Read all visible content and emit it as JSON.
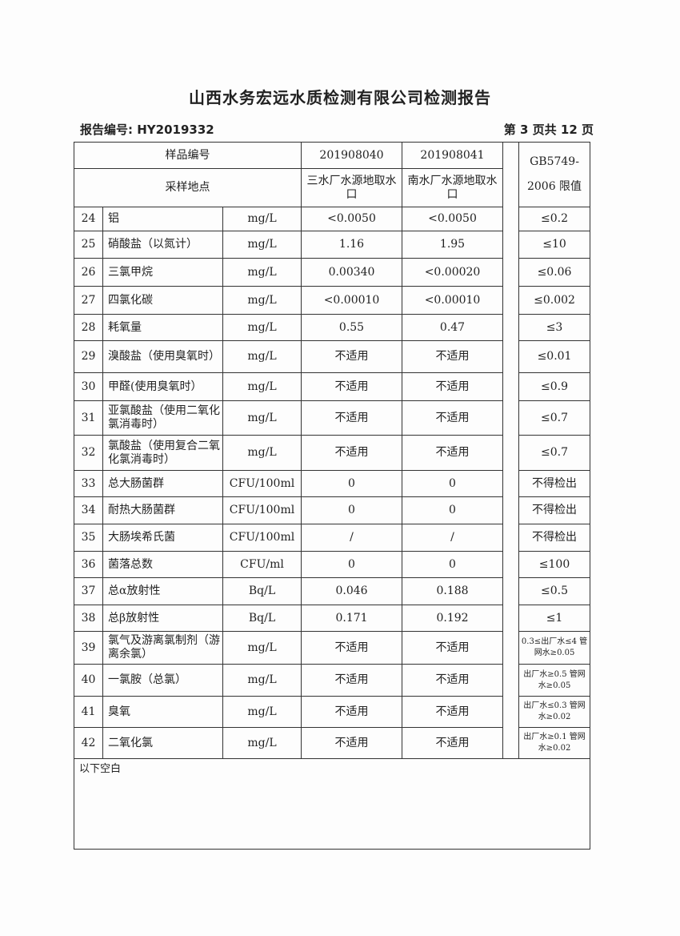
{
  "title": "山西水务宏远水质检测有限公司检测报告",
  "report_no": "报告编号: HY2019332",
  "page_info": "第 3 页共 12 页",
  "header": {
    "sample_no_label": "样品编号",
    "sample1": "201908040",
    "sample2": "201908041",
    "location_label": "采样地点",
    "loc1": "三水厂水源地取水口",
    "loc2": "南水厂水源地取水口",
    "limit_label1": "GB5749-",
    "limit_label2": "2006 限值"
  },
  "rows": [
    {
      "no": "24",
      "name": "铝",
      "unit": "mg/L",
      "v1": "<0.0050",
      "v2": "<0.0050",
      "limit": "≤0.2"
    },
    {
      "no": "25",
      "name": "硝酸盐（以氮计）",
      "unit": "mg/L",
      "v1": "1.16",
      "v2": "1.95",
      "limit": "≤10"
    },
    {
      "no": "26",
      "name": "三氯甲烷",
      "unit": "mg/L",
      "v1": "0.00340",
      "v2": "<0.00020",
      "limit": "≤0.06"
    },
    {
      "no": "27",
      "name": "四氯化碳",
      "unit": "mg/L",
      "v1": "<0.00010",
      "v2": "<0.00010",
      "limit": "≤0.002"
    },
    {
      "no": "28",
      "name": "耗氧量",
      "unit": "mg/L",
      "v1": "0.55",
      "v2": "0.47",
      "limit": "≤3"
    },
    {
      "no": "29",
      "name": "溴酸盐（使用臭氧时）",
      "unit": "mg/L",
      "v1": "不适用",
      "v2": "不适用",
      "limit": "≤0.01"
    },
    {
      "no": "30",
      "name": "甲醛(使用臭氧时）",
      "unit": "mg/L",
      "v1": "不适用",
      "v2": "不适用",
      "limit": "≤0.9"
    },
    {
      "no": "31",
      "name": "亚氯酸盐（使用二氧化氯消毒时）",
      "unit": "mg/L",
      "v1": "不适用",
      "v2": "不适用",
      "limit": "≤0.7"
    },
    {
      "no": "32",
      "name": "氯酸盐（使用复合二氧化氯消毒时）",
      "unit": "mg/L",
      "v1": "不适用",
      "v2": "不适用",
      "limit": "≤0.7"
    },
    {
      "no": "33",
      "name": "总大肠菌群",
      "unit": "CFU/100ml",
      "v1": "0",
      "v2": "0",
      "limit": "不得检出"
    },
    {
      "no": "34",
      "name": "耐热大肠菌群",
      "unit": "CFU/100ml",
      "v1": "0",
      "v2": "0",
      "limit": "不得检出"
    },
    {
      "no": "35",
      "name": "大肠埃希氏菌",
      "unit": "CFU/100ml",
      "v1": "/",
      "v2": "/",
      "limit": "不得检出"
    },
    {
      "no": "36",
      "name": "菌落总数",
      "unit": "CFU/ml",
      "v1": "0",
      "v2": "0",
      "limit": "≤100"
    },
    {
      "no": "37",
      "name": "总α放射性",
      "unit": "Bq/L",
      "v1": "0.046",
      "v2": "0.188",
      "limit": "≤0.5"
    },
    {
      "no": "38",
      "name": "总β放射性",
      "unit": "Bq/L",
      "v1": "0.171",
      "v2": "0.192",
      "limit": "≤1"
    },
    {
      "no": "39",
      "name": "氯气及游离氯制剂（游离余氯）",
      "unit": "mg/L",
      "v1": "不适用",
      "v2": "不适用",
      "limit": "0.3≤出厂水≤4 管网水≥0.05"
    },
    {
      "no": "40",
      "name": "一氯胺（总氯）",
      "unit": "mg/L",
      "v1": "不适用",
      "v2": "不适用",
      "limit": "出厂水≥0.5 管网水≥0.05"
    },
    {
      "no": "41",
      "name": "臭氧",
      "unit": "mg/L",
      "v1": "不适用",
      "v2": "不适用",
      "limit": "出厂水≤0.3 管网水≥0.02"
    },
    {
      "no": "42",
      "name": "二氧化氯",
      "unit": "mg/L",
      "v1": "不适用",
      "v2": "不适用",
      "limit": "出厂水≥0.1 管网水≥0.02"
    }
  ],
  "footer_note": "以下空白"
}
